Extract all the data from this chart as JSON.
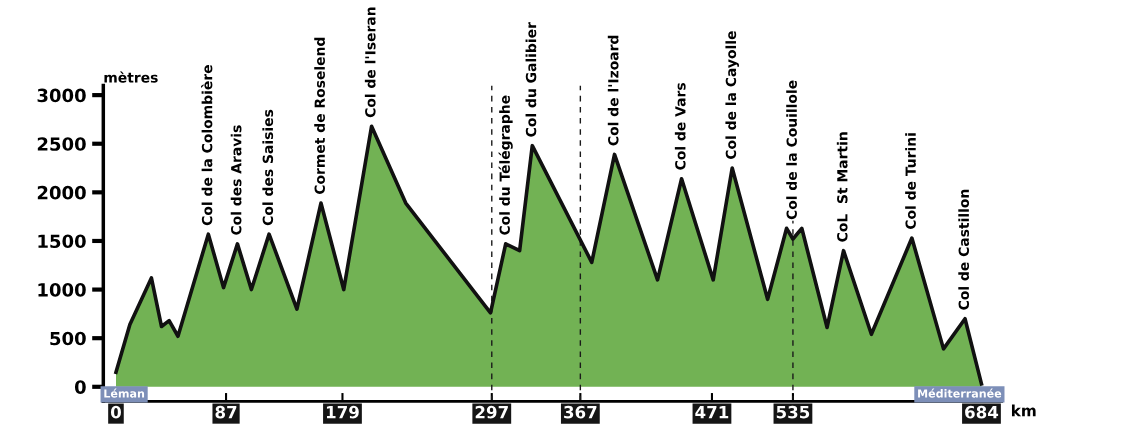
{
  "chart_data": {
    "type": "area",
    "xlabel": "km",
    "ylabel": "mètres",
    "x": [
      0,
      11,
      28,
      36,
      42,
      49,
      73,
      85,
      96,
      107,
      121,
      143,
      162,
      180,
      202,
      229,
      296,
      308,
      319,
      329,
      376,
      394,
      428,
      447,
      472,
      487,
      515,
      530,
      535,
      542,
      562,
      575,
      597,
      629,
      654,
      671,
      684
    ],
    "series": [
      {
        "color": "#72b254",
        "values": [
          150,
          640,
          1120,
          620,
          680,
          520,
          1570,
          1020,
          1470,
          1000,
          1570,
          800,
          1890,
          1000,
          2680,
          1890,
          760,
          1470,
          1400,
          2480,
          1280,
          2390,
          1100,
          2140,
          1100,
          2250,
          900,
          1630,
          1520,
          1630,
          610,
          1400,
          540,
          1530,
          390,
          700,
          30
        ]
      }
    ],
    "xlim": [
      -10,
      700
    ],
    "xticks": [
      0,
      87,
      179,
      297,
      367,
      471,
      535,
      684
    ],
    "ylim": [
      -150,
      3100
    ],
    "yticks": [
      0,
      500,
      1000,
      1500,
      2000,
      2500,
      3000
    ],
    "ref_lines": [
      {
        "axis": "x",
        "value": 297,
        "line_style": "dashed",
        "color": "#1a1a1a"
      },
      {
        "axis": "x",
        "value": 367,
        "line_style": "dashed",
        "color": "#1a1a1a"
      },
      {
        "axis": "x",
        "value": 535,
        "line_style": "dashed",
        "color": "#1a1a1a"
      }
    ],
    "annotations": [
      {
        "text": "Col de la Colombière",
        "x": 73,
        "y": 1570
      },
      {
        "text": "Col des Aravis",
        "x": 96,
        "y": 1470
      },
      {
        "text": "Col des Saisies",
        "x": 121,
        "y": 1570
      },
      {
        "text": "Cormet de Roselend",
        "x": 162,
        "y": 1890
      },
      {
        "text": "Col de l'Iseran",
        "x": 202,
        "y": 2680
      },
      {
        "text": "Col du Télégraphe",
        "x": 308,
        "y": 1470
      },
      {
        "text": "Col du Galibier",
        "x": 329,
        "y": 2480
      },
      {
        "text": "Col de l'Izoard",
        "x": 394,
        "y": 2390
      },
      {
        "text": "Col de Vars",
        "x": 447,
        "y": 2140
      },
      {
        "text": "Col de la Cayolle",
        "x": 487,
        "y": 2250
      },
      {
        "text": "Col de la Couillole",
        "x": 535,
        "y": 1630
      },
      {
        "text": "CoL  St Martin",
        "x": 575,
        "y": 1400
      },
      {
        "text": "Col de Turini",
        "x": 629,
        "y": 1530
      },
      {
        "text": "Col de Castillon",
        "x": 671,
        "y": 700
      },
      "Léman",
      "Méditerranée"
    ],
    "grid": false,
    "legend": false
  }
}
